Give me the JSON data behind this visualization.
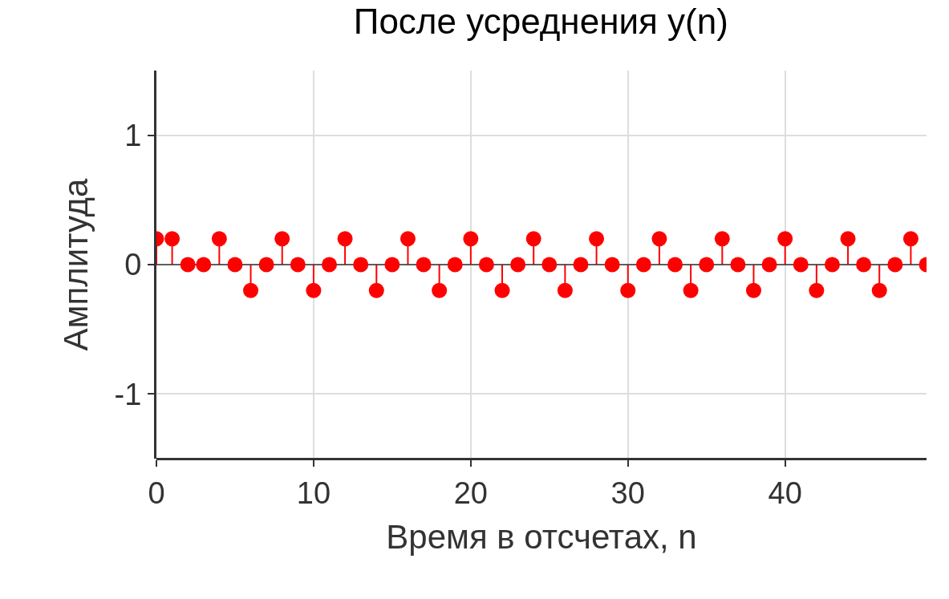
{
  "chart_data": {
    "type": "lollipop",
    "title": "После усреднения y(n)",
    "xlabel": "Время в отсчетах, n",
    "ylabel": "Амплитуда",
    "x": [
      0,
      1,
      2,
      3,
      4,
      5,
      6,
      7,
      8,
      9,
      10,
      11,
      12,
      13,
      14,
      15,
      16,
      17,
      18,
      19,
      20,
      21,
      22,
      23,
      24,
      25,
      26,
      27,
      28,
      29,
      30,
      31,
      32,
      33,
      34,
      35,
      36,
      37,
      38,
      39,
      40,
      41,
      42,
      43,
      44,
      45,
      46,
      47,
      48,
      49
    ],
    "values": [
      0.2,
      0.2,
      0,
      0,
      0.2,
      0,
      -0.2,
      0,
      0.2,
      0,
      -0.2,
      0,
      0.2,
      0,
      -0.2,
      0,
      0.2,
      0,
      -0.2,
      0,
      0.2,
      0,
      -0.2,
      0,
      0.2,
      0,
      -0.2,
      0,
      0.2,
      0,
      -0.2,
      0,
      0.2,
      0,
      -0.2,
      0,
      0.2,
      0,
      -0.2,
      0,
      0.2,
      0,
      -0.2,
      0,
      0.2,
      0,
      -0.2,
      0,
      0.2,
      0
    ],
    "color": "#ff0000",
    "marker": "circle",
    "xlim": [
      0,
      49
    ],
    "ylim": [
      -1.5,
      1.5
    ],
    "xticks": [
      0,
      10,
      20,
      30,
      40
    ],
    "yticks": [
      -1,
      0,
      1
    ],
    "grid": true
  }
}
